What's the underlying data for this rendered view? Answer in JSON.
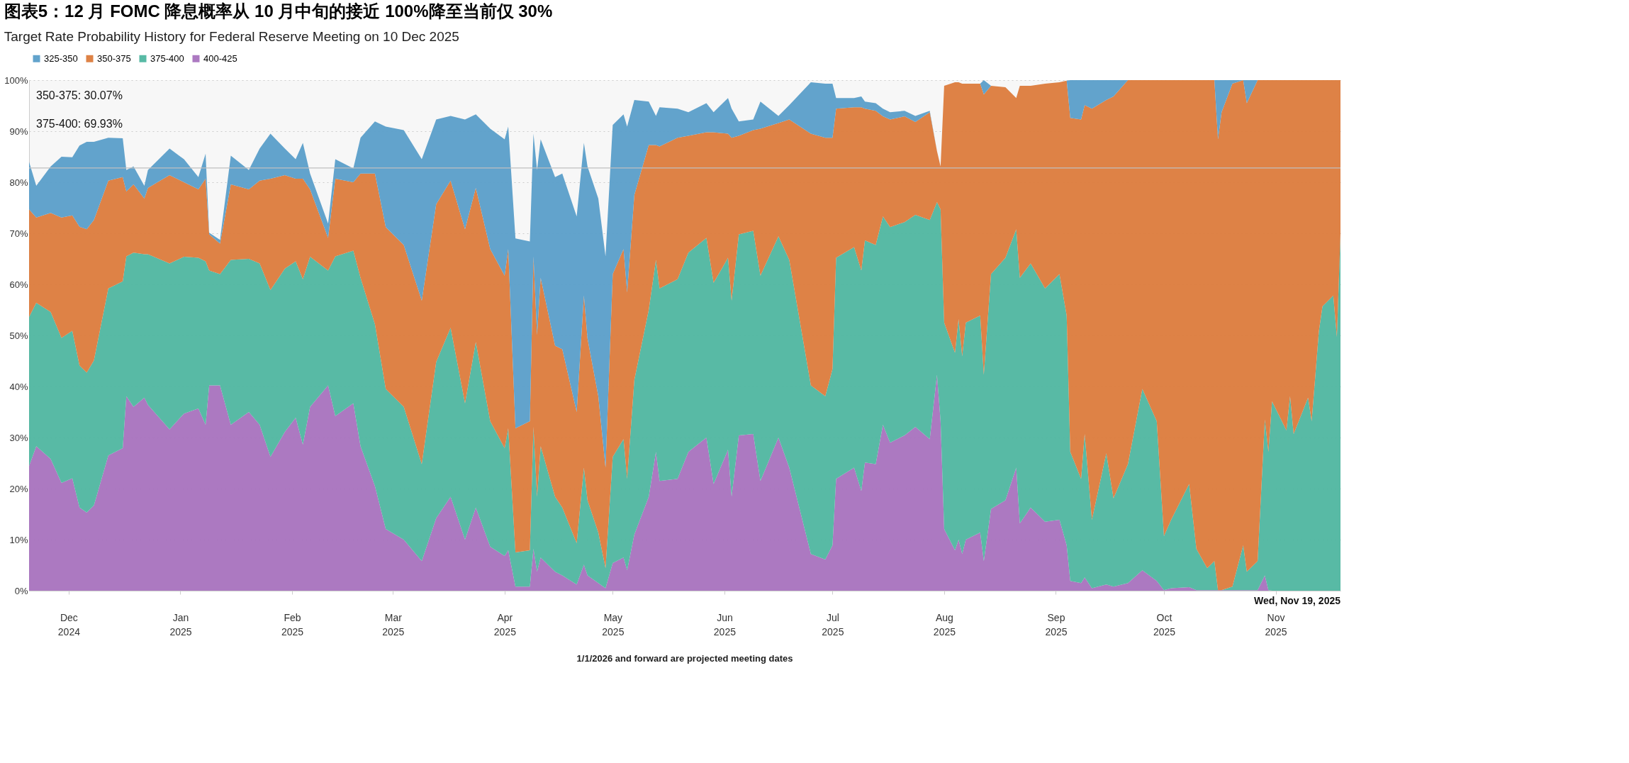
{
  "chart_data": {
    "type": "area",
    "stacked": true,
    "title": "图表5：12 月 FOMC 降息概率从 10 月中旬的接近 100%降至当前仅 30%",
    "subtitle": "Target Rate Probability History for Federal Reserve Meeting on 10 Dec 2025",
    "x": [
      "2024-11-20",
      "2024-11-22",
      "2024-11-26",
      "2024-11-29",
      "2024-12-02",
      "2024-12-04",
      "2024-12-06",
      "2024-12-08",
      "2024-12-12",
      "2024-12-16",
      "2024-12-17",
      "2024-12-19",
      "2024-12-22",
      "2024-12-23",
      "2024-12-29",
      "2025-01-02",
      "2025-01-06",
      "2025-01-08",
      "2025-01-09",
      "2025-01-12",
      "2025-01-15",
      "2025-01-20",
      "2025-01-23",
      "2025-01-26",
      "2025-01-30",
      "2025-02-02",
      "2025-02-04",
      "2025-02-06",
      "2025-02-11",
      "2025-02-13",
      "2025-02-18",
      "2025-02-20",
      "2025-02-24",
      "2025-02-27",
      "2025-03-04",
      "2025-03-09",
      "2025-03-13",
      "2025-03-17",
      "2025-03-21",
      "2025-03-24",
      "2025-03-28",
      "2025-04-01",
      "2025-04-02",
      "2025-04-04",
      "2025-04-08",
      "2025-04-09",
      "2025-04-10",
      "2025-04-11",
      "2025-04-15",
      "2025-04-17",
      "2025-04-21",
      "2025-04-23",
      "2025-04-24",
      "2025-04-27",
      "2025-04-29",
      "2025-05-01",
      "2025-05-04",
      "2025-05-05",
      "2025-05-07",
      "2025-05-11",
      "2025-05-13",
      "2025-05-14",
      "2025-05-19",
      "2025-05-22",
      "2025-05-27",
      "2025-05-29",
      "2025-06-02",
      "2025-06-03",
      "2025-06-05",
      "2025-06-09",
      "2025-06-11",
      "2025-06-16",
      "2025-06-19",
      "2025-06-25",
      "2025-06-29",
      "2025-07-01",
      "2025-07-02",
      "2025-07-07",
      "2025-07-09",
      "2025-07-10",
      "2025-07-13",
      "2025-07-15",
      "2025-07-17",
      "2025-07-21",
      "2025-07-24",
      "2025-07-28",
      "2025-07-30",
      "2025-07-31",
      "2025-08-01",
      "2025-08-04",
      "2025-08-05",
      "2025-08-06",
      "2025-08-07",
      "2025-08-11",
      "2025-08-12",
      "2025-08-14",
      "2025-08-18",
      "2025-08-21",
      "2025-08-22",
      "2025-08-25",
      "2025-08-29",
      "2025-09-02",
      "2025-09-04",
      "2025-09-05",
      "2025-09-08",
      "2025-09-09",
      "2025-09-11",
      "2025-09-15",
      "2025-09-17",
      "2025-09-21",
      "2025-09-25",
      "2025-09-29",
      "2025-10-01",
      "2025-10-03",
      "2025-10-08",
      "2025-10-10",
      "2025-10-13",
      "2025-10-15",
      "2025-10-16",
      "2025-10-17",
      "2025-10-20",
      "2025-10-23",
      "2025-10-24",
      "2025-10-27",
      "2025-10-29",
      "2025-10-30",
      "2025-10-31",
      "2025-11-04",
      "2025-11-05",
      "2025-11-06",
      "2025-11-10",
      "2025-11-11",
      "2025-11-13",
      "2025-11-14",
      "2025-11-17",
      "2025-11-18",
      "2025-11-19"
    ],
    "series": [
      {
        "name": "400-425",
        "color": "#a872be",
        "values": [
          24.4,
          28.3,
          25.8,
          21.1,
          22,
          16.3,
          15.3,
          16.7,
          26.5,
          27.9,
          38.1,
          36,
          37.8,
          36.4,
          31.6,
          34.7,
          35.7,
          32.5,
          40.2,
          40.2,
          32.5,
          35,
          32.5,
          26.2,
          31.1,
          33.9,
          28.6,
          36,
          40.2,
          34.2,
          36.7,
          28.3,
          20.5,
          12.1,
          10,
          5.8,
          14.2,
          18.4,
          10,
          16.3,
          8.6,
          6.8,
          7.9,
          0.8,
          0.8,
          8.2,
          3.7,
          6.5,
          3.7,
          3,
          1.2,
          5.1,
          3,
          1.5,
          0.5,
          5.4,
          6.5,
          4,
          11,
          18.4,
          27.2,
          21.5,
          21.9,
          27.2,
          30,
          20.9,
          27.6,
          18.4,
          30.4,
          30.7,
          21.5,
          30,
          24.1,
          7.2,
          6.1,
          8.9,
          21.9,
          24.1,
          19.5,
          25.1,
          24.8,
          32.5,
          29,
          30.4,
          32.1,
          29.7,
          42.3,
          33.2,
          12.1,
          7.9,
          10,
          7.2,
          10,
          11.4,
          5.8,
          16,
          17.7,
          24.1,
          13.2,
          16.3,
          13.5,
          13.9,
          8.9,
          1.9,
          1.5,
          2.6,
          0.5,
          1.2,
          0.8,
          1.5,
          4,
          1.9,
          0.1,
          0.5,
          0.7,
          0.1,
          0.1,
          0.1,
          0.1,
          0.1,
          0.1,
          0.1,
          0.1,
          0.1,
          3,
          0.1,
          0,
          0,
          0,
          0,
          0,
          0,
          0,
          0,
          0,
          0,
          0
        ]
      },
      {
        "name": "375-400",
        "color": "#4fb6a0",
        "values": [
          29.2,
          28.1,
          28.8,
          28.4,
          28.9,
          27.8,
          27.4,
          28.4,
          32.7,
          32.7,
          27.4,
          30.2,
          28.1,
          29.5,
          32.5,
          30.7,
          29.5,
          32,
          22.5,
          21.8,
          32.3,
          30,
          31.6,
          32.7,
          32,
          30.6,
          32.4,
          29.4,
          22.5,
          31.3,
          29.9,
          33,
          31.7,
          27.4,
          26,
          19,
          30.6,
          33.1,
          26.7,
          32.4,
          24.6,
          21.1,
          23.9,
          6.7,
          7.1,
          23.9,
          14.7,
          21.8,
          14.7,
          13.3,
          8.1,
          19,
          14.7,
          9.9,
          3.9,
          20.8,
          23.2,
          17.9,
          30.3,
          36.6,
          37.6,
          37.7,
          39.1,
          39,
          39.1,
          39.4,
          37.6,
          38.4,
          39.4,
          39.8,
          40.2,
          39.4,
          40.7,
          33,
          32,
          34.5,
          43.3,
          43.2,
          43.2,
          43.5,
          42.9,
          40.8,
          42.2,
          41.8,
          41.5,
          42.9,
          33.8,
          41.5,
          40.4,
          38.7,
          43.2,
          38.7,
          42.5,
          42.5,
          36.5,
          46,
          47.5,
          46.7,
          48.1,
          47.8,
          45.7,
          48.1,
          45,
          25.3,
          20.4,
          28.1,
          13.4,
          25.7,
          17.3,
          23.3,
          35.5,
          31.3,
          10.6,
          13.4,
          20.2,
          8.1,
          4.3,
          5.7,
          0,
          0,
          0.7,
          8.8,
          3.6,
          5.7,
          30.5,
          27.1,
          37.1,
          31.4,
          38.1,
          30.7,
          37.8,
          33.2,
          50.8,
          55.7,
          57.8,
          49.7,
          69.93
        ]
      },
      {
        "name": "350-375",
        "color": "#dc7b3c",
        "values": [
          21.1,
          16.7,
          19.4,
          23.6,
          22.6,
          27.2,
          28.1,
          27.5,
          21.1,
          20.4,
          12.7,
          13.4,
          10.9,
          13,
          17.3,
          14.6,
          13.4,
          16.2,
          7.1,
          6,
          14.8,
          13.6,
          16.2,
          21.8,
          18.3,
          16.2,
          19.7,
          13.2,
          6.4,
          15.2,
          13.4,
          20.4,
          29.5,
          31.7,
          31.7,
          32,
          30.9,
          28.8,
          34.1,
          30.2,
          33.7,
          33.8,
          35.1,
          24.3,
          25.3,
          33.4,
          31.7,
          33,
          29.6,
          31,
          25.7,
          33.7,
          31.7,
          26.7,
          19.7,
          35.8,
          37.2,
          36.5,
          36.2,
          32.3,
          22.5,
          27.8,
          27.7,
          22.9,
          20.7,
          29.5,
          24.3,
          31.9,
          19.3,
          19.7,
          28.8,
          22.2,
          27.5,
          49.3,
          50.6,
          45.3,
          29.2,
          27.4,
          32,
          25.8,
          26.3,
          19.6,
          21.1,
          20.7,
          18.2,
          21.1,
          10,
          8.4,
          46.4,
          53,
          46.4,
          53.4,
          46.8,
          45.4,
          54.9,
          36.9,
          33.4,
          25.7,
          37.6,
          34.8,
          40.1,
          37.6,
          46,
          65.4,
          70.4,
          64.4,
          80.5,
          69.2,
          78.7,
          75.2,
          60.5,
          66.8,
          89.3,
          86.1,
          79.1,
          91.8,
          95.6,
          94.2,
          88.3,
          93.6,
          98.5,
          91.1,
          91.8,
          94.2,
          66.5,
          72.8,
          62.9,
          68.6,
          61.9,
          69.3,
          62.2,
          66.8,
          49.2,
          44.3,
          42.2,
          50.3,
          30.07
        ]
      },
      {
        "name": "325-350",
        "color": "#5a9ec9",
        "values": [
          9.3,
          6.2,
          9.1,
          11.9,
          11.4,
          15.9,
          17.1,
          15.3,
          8.4,
          7.6,
          4.2,
          3.5,
          2.5,
          3.5,
          5.2,
          4.5,
          2.4,
          4.9,
          0.3,
          0.7,
          5.6,
          3.8,
          6.3,
          8.8,
          5.2,
          3.8,
          7,
          3.1,
          2.8,
          3.8,
          2.7,
          7,
          10.2,
          19.7,
          22.5,
          27.7,
          16.6,
          12.7,
          21.5,
          14.4,
          23.6,
          26.7,
          24,
          37.2,
          35.2,
          24,
          32.3,
          27.1,
          33,
          34.4,
          38.3,
          29.9,
          33.7,
          38.7,
          41.4,
          29.2,
          26.4,
          32.5,
          18.6,
          8.5,
          5.7,
          7.7,
          5.7,
          4.6,
          5.7,
          3.9,
          7,
          5.7,
          2.8,
          2.1,
          5.3,
          1.4,
          2.8,
          10.1,
          10.6,
          10.6,
          2.1,
          1.8,
          2.1,
          1.4,
          1.5,
          1.5,
          1.4,
          1.1,
          1.2,
          0.3,
          0,
          0,
          0,
          0,
          0,
          0,
          0,
          0,
          2.8,
          0,
          0,
          0,
          0,
          0,
          0,
          0,
          0,
          7.4,
          7.7,
          4.9,
          5.6,
          3.9,
          3.2,
          0,
          0,
          0,
          0,
          0,
          0,
          0,
          0,
          0,
          11.6,
          6.3,
          0.7,
          0,
          4.5,
          0,
          0,
          0,
          0,
          0,
          0,
          0,
          0,
          0,
          0,
          0,
          0,
          0,
          0
        ]
      }
    ],
    "xlim": [
      "2024-11-20",
      "2025-11-19"
    ],
    "xticks": [
      {
        "value": "2024-12-01",
        "label": "Dec\n2024"
      },
      {
        "value": "2025-01-01",
        "label": "Jan\n2025"
      },
      {
        "value": "2025-02-01",
        "label": "Feb\n2025"
      },
      {
        "value": "2025-03-01",
        "label": "Mar\n2025"
      },
      {
        "value": "2025-04-01",
        "label": "Apr\n2025"
      },
      {
        "value": "2025-05-01",
        "label": "May\n2025"
      },
      {
        "value": "2025-06-01",
        "label": "Jun\n2025"
      },
      {
        "value": "2025-07-01",
        "label": "Jul\n2025"
      },
      {
        "value": "2025-08-01",
        "label": "Aug\n2025"
      },
      {
        "value": "2025-09-01",
        "label": "Sep\n2025"
      },
      {
        "value": "2025-10-01",
        "label": "Oct\n2025"
      },
      {
        "value": "2025-11-01",
        "label": "Nov\n2025"
      }
    ],
    "ylim": [
      0,
      100
    ],
    "yticks": [
      {
        "value": 0,
        "label": "0%"
      },
      {
        "value": 10,
        "label": "10%"
      },
      {
        "value": 20,
        "label": "20%"
      },
      {
        "value": 30,
        "label": "30%"
      },
      {
        "value": 40,
        "label": "40%"
      },
      {
        "value": 50,
        "label": "50%"
      },
      {
        "value": 60,
        "label": "60%"
      },
      {
        "value": 70,
        "label": "70%"
      },
      {
        "value": 80,
        "label": "80%"
      },
      {
        "value": 90,
        "label": "90%"
      },
      {
        "value": 100,
        "label": "100%"
      }
    ],
    "grid": "y",
    "legend": "top",
    "ref_lines": [
      {
        "axis": "y",
        "value": 82.8,
        "color": "#c0c0c0"
      }
    ],
    "annotations": [
      "350-375: 30.07%",
      "375-400: 69.93%",
      "Wed, Nov 19, 2025",
      "1/1/2026 and forward are projected meeting dates"
    ]
  }
}
